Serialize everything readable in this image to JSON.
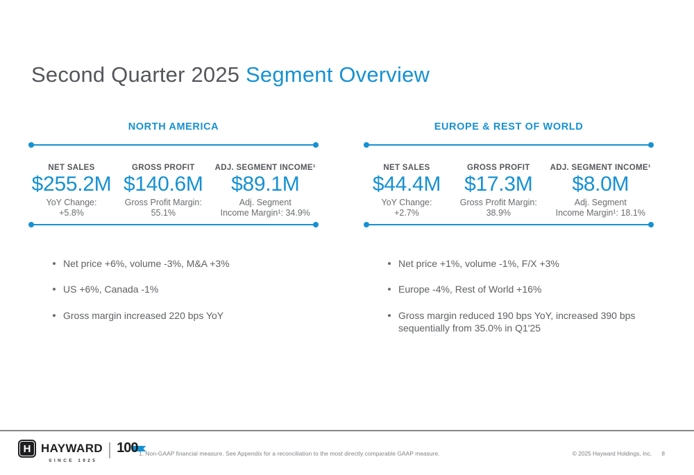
{
  "title": {
    "prefix": "Second Quarter 2025 ",
    "highlight": "Segment Overview"
  },
  "colors": {
    "accent_blue": "#1691D2",
    "title_gray": "#54565A",
    "body_gray": "#6A6C6F",
    "logo_black": "#1E1E20"
  },
  "segments": [
    {
      "name": "NORTH AMERICA",
      "metrics": [
        {
          "label": "NET SALES",
          "value": "$255.2M",
          "sub_line1": "YoY Change:",
          "sub_line2": "+5.8%"
        },
        {
          "label": "GROSS PROFIT",
          "value": "$140.6M",
          "sub_line1": "Gross Profit Margin:",
          "sub_line2": "55.1%"
        },
        {
          "label": "ADJ. SEGMENT INCOME¹",
          "value": "$89.1M",
          "sub_line1": "Adj. Segment",
          "sub_line2": "Income Margin¹: 34.9%"
        }
      ],
      "bullets": [
        "Net price +6%, volume -3%, M&A +3%",
        "US +6%, Canada -1%",
        "Gross margin increased 220 bps YoY"
      ]
    },
    {
      "name": "EUROPE & REST OF WORLD",
      "metrics": [
        {
          "label": "NET SALES",
          "value": "$44.4M",
          "sub_line1": "YoY Change:",
          "sub_line2": "+2.7%"
        },
        {
          "label": "GROSS PROFIT",
          "value": "$17.3M",
          "sub_line1": "Gross Profit Margin:",
          "sub_line2": "38.9%"
        },
        {
          "label": "ADJ. SEGMENT INCOME¹",
          "value": "$8.0M",
          "sub_line1": "Adj. Segment",
          "sub_line2": "Income Margin¹: 18.1%"
        }
      ],
      "bullets": [
        "Net price +1%, volume -1%, F/X +3%",
        "Europe -4%, Rest of World +16%",
        "Gross margin reduced 190 bps YoY, increased 390 bps sequentially from 35.0% in Q1'25"
      ]
    }
  ],
  "footer": {
    "footnote": "1. Non-GAAP financial measure. See Appendix for a reconciliation to the most directly comparable GAAP measure.",
    "copyright": "© 2025 Hayward Holdings, Inc.",
    "page_number": "8",
    "logo": {
      "icon_letter": "H",
      "brand": "HAYWARD",
      "anniversary": "100",
      "tagline": "SINCE 1925"
    }
  }
}
